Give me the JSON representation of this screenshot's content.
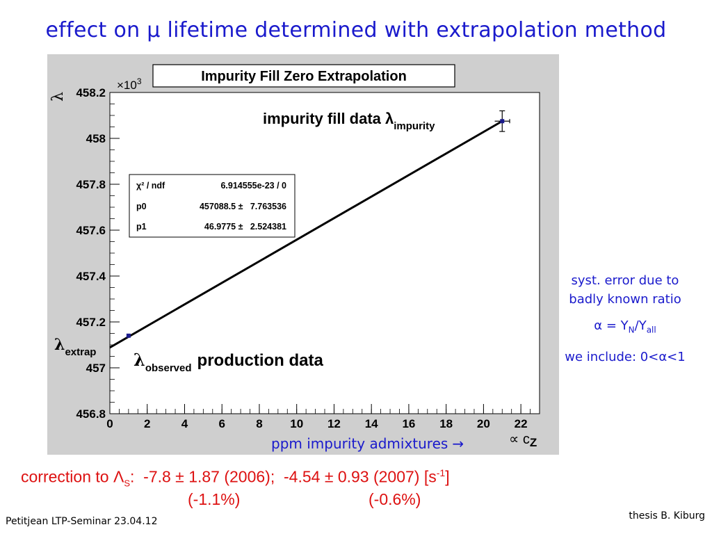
{
  "slide": {
    "title": "effect on μ lifetime determined with extrapolation method",
    "footer_left": "Petitjean LTP-Seminar 23.04.12",
    "footer_right": "thesis B. Kiburg"
  },
  "side_note": {
    "line1": "syst. error due to",
    "line2": "badly known ratio",
    "ratio_prefix": "α = Y",
    "ratio_sub_n": "N",
    "ratio_mid": "/Y",
    "ratio_sub_all": "all",
    "include": "we include: 0<α<1"
  },
  "correction": {
    "text_main": "correction to Λ",
    "lambda_sub": "S",
    "text_values": ":  -7.8 ± 1.87 (2006);  -4.54 ± 0.93 (2007) [s",
    "unit_sup": "-1",
    "text_close": "]",
    "pct_2006": "(-1.1%)",
    "pct_2007": "(-0.6%)"
  },
  "x_axis_caption": {
    "text": "ppm impurity admixtures",
    "arrow": "→"
  },
  "chart_data": {
    "type": "line",
    "title": "Impurity Fill Zero Extrapolation",
    "xlim": [
      0,
      23
    ],
    "ylim": [
      456.8,
      458.2
    ],
    "x_ticks": [
      0,
      2,
      4,
      6,
      8,
      10,
      12,
      14,
      16,
      18,
      20,
      22
    ],
    "y_ticks": [
      456.8,
      457,
      457.2,
      457.4,
      457.6,
      457.8,
      458,
      458.2
    ],
    "y_tick_labels": [
      "456.8",
      "457",
      "457.2",
      "457.4",
      "457.6",
      "457.8",
      "458",
      "458.2"
    ],
    "y_multiplier": "×10",
    "y_multiplier_exp": "3",
    "y_axis_label": "λ",
    "x_axis_label": "∝ c",
    "x_axis_label_sub": "Z",
    "fit": {
      "x0": 0,
      "y0": 457.0885,
      "slope": 0.0469775,
      "x_end": 21
    },
    "points": [
      {
        "x": 1.0,
        "y": 457.14,
        "yerr": 0.0
      },
      {
        "x": 21.0,
        "y": 458.075,
        "yerr": 0.045,
        "xerr": 0.4
      }
    ],
    "stats_box": {
      "rows": [
        {
          "label": "χ² / ndf",
          "value": "6.914555e-23 / 0"
        },
        {
          "label": "p0",
          "value": "457088.5 ±   7.763536"
        },
        {
          "label": "p1",
          "value": "46.9775 ±   2.524381"
        }
      ]
    },
    "annotations": {
      "impurity_text": "impurity fill data λ",
      "impurity_sub": "impurity",
      "extrap_symbol": "λ",
      "extrap_sub": "extrap",
      "observed_symbol": "λ",
      "observed_sub": "observed",
      "production_text": "production data"
    },
    "colors": {
      "line": "#000000",
      "marker": "#1a1a8c",
      "frame_bg": "#cfcfcf"
    }
  }
}
